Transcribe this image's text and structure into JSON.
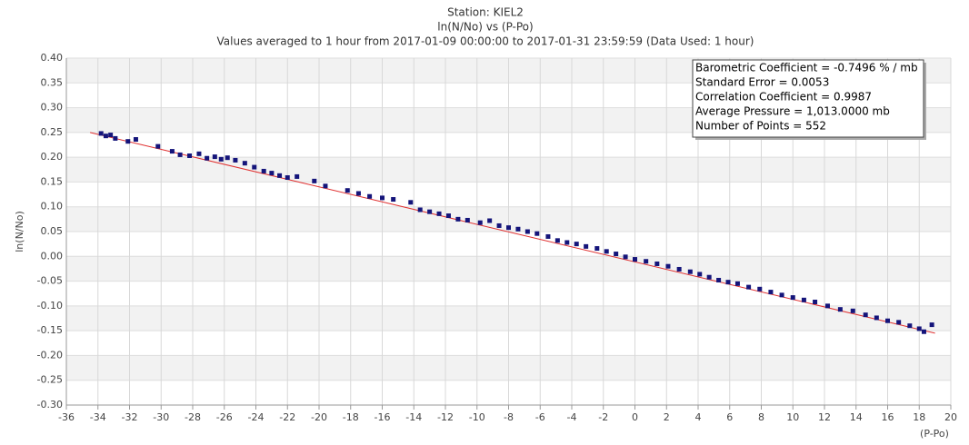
{
  "chart_data": {
    "type": "scatter",
    "title": "Station: KIEL2",
    "subtitle": "ln(N/No) vs (P-Po)",
    "subtitle2": "Values averaged to 1 hour from 2017-01-09 00:00:00 to 2017-01-31 23:59:59 (Data Used: 1 hour)",
    "ylabel": "ln(N/No)",
    "xlabel": "(P-Po)",
    "xlim": [
      -36,
      20
    ],
    "ylim": [
      -0.3,
      0.4
    ],
    "xticks": [
      -36,
      -34,
      -32,
      -30,
      -28,
      -26,
      -24,
      -22,
      -20,
      -18,
      -16,
      -14,
      -12,
      -10,
      -8,
      -6,
      -4,
      -2,
      0,
      2,
      4,
      6,
      8,
      10,
      12,
      14,
      16,
      18,
      20
    ],
    "yticks": [
      {
        "value": 0.4,
        "label": "0.40"
      },
      0.35,
      {
        "value": 0.3,
        "label": "0.30"
      },
      0.25,
      {
        "value": 0.2,
        "label": "0.20"
      },
      0.15,
      {
        "value": 0.1,
        "label": "0.10"
      },
      0.05,
      {
        "value": 0,
        "label": "0.00"
      },
      -0.05,
      {
        "value": -0.1,
        "label": "-0.10"
      },
      -0.15,
      {
        "value": -0.2,
        "label": "-0.20"
      },
      -0.25,
      {
        "value": -0.3,
        "label": "-0.30"
      }
    ],
    "grid": true,
    "annotations": [
      "Barometric Coefficient = -0.7496 % / mb",
      "Standard Error = 0.0053",
      "Correlation Coefficient = 0.9987",
      "Average Pressure = 1,013.0000 mb",
      "Number of Points = 552"
    ],
    "fit_line": {
      "color": "#e03030",
      "x": [
        -34.5,
        19
      ],
      "y": [
        0.25,
        -0.155
      ]
    },
    "series": [
      {
        "color": "#14147a",
        "x": [
          -33.8,
          -33.5,
          -33.2,
          -32.9,
          -32.1,
          -31.6,
          -30.2,
          -29.3,
          -28.8,
          -28.2,
          -27.6,
          -27.1,
          -26.6,
          -26.2,
          -25.8,
          -25.3,
          -24.7,
          -24.1,
          -23.5,
          -23.0,
          -22.5,
          -22.0,
          -21.4,
          -20.3,
          -19.6,
          -18.2,
          -17.5,
          -16.8,
          -16.0,
          -15.3,
          -14.2,
          -13.6,
          -13.0,
          -12.4,
          -11.8,
          -11.2,
          -10.6,
          -9.8,
          -9.2,
          -8.6,
          -8.0,
          -7.4,
          -6.8,
          -6.2,
          -5.5,
          -4.9,
          -4.3,
          -3.7,
          -3.1,
          -2.4,
          -1.8,
          -1.2,
          -0.6,
          0.0,
          0.7,
          1.4,
          2.1,
          2.8,
          3.5,
          4.1,
          4.7,
          5.3,
          5.9,
          6.5,
          7.2,
          7.9,
          8.6,
          9.3,
          10.0,
          10.7,
          11.4,
          12.2,
          13.0,
          13.8,
          14.6,
          15.3,
          16.0,
          16.7,
          17.4,
          18.0,
          18.3,
          18.8
        ],
        "y": [
          0.248,
          0.243,
          0.245,
          0.238,
          0.232,
          0.236,
          0.222,
          0.212,
          0.205,
          0.203,
          0.207,
          0.198,
          0.201,
          0.196,
          0.199,
          0.194,
          0.188,
          0.18,
          0.172,
          0.168,
          0.163,
          0.159,
          0.161,
          0.152,
          0.142,
          0.133,
          0.127,
          0.121,
          0.118,
          0.115,
          0.109,
          0.094,
          0.09,
          0.086,
          0.082,
          0.075,
          0.073,
          0.068,
          0.072,
          0.062,
          0.058,
          0.055,
          0.05,
          0.046,
          0.04,
          0.032,
          0.028,
          0.025,
          0.02,
          0.016,
          0.01,
          0.005,
          -0.001,
          -0.006,
          -0.01,
          -0.015,
          -0.02,
          -0.026,
          -0.031,
          -0.036,
          -0.042,
          -0.048,
          -0.052,
          -0.055,
          -0.062,
          -0.066,
          -0.072,
          -0.078,
          -0.083,
          -0.088,
          -0.092,
          -0.1,
          -0.107,
          -0.11,
          -0.118,
          -0.124,
          -0.13,
          -0.133,
          -0.14,
          -0.146,
          -0.152,
          -0.138
        ]
      }
    ]
  }
}
